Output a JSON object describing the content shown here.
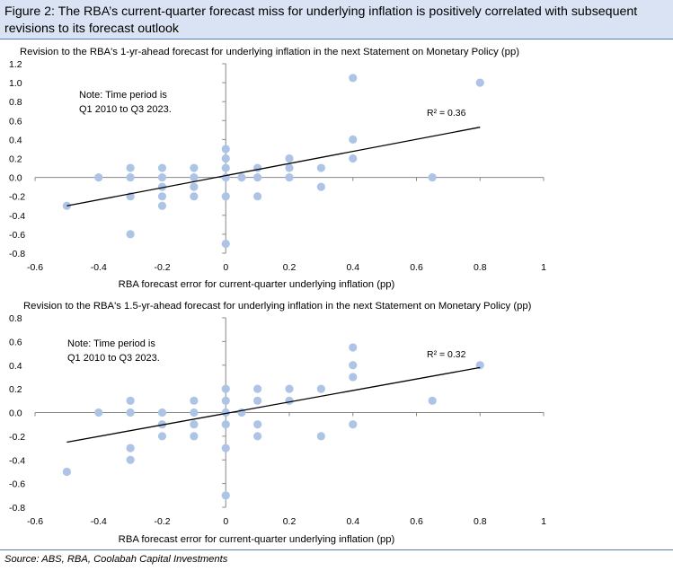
{
  "figure": {
    "title": "Figure 2: The RBA’s current-quarter forecast miss for underlying inflation is positively correlated with subsequent revisions to its forecast outlook",
    "source": "Source: ABS, RBA, Coolabah Capital Investments"
  },
  "colors": {
    "point": "#aec4e6",
    "trend": "#000000",
    "axis": "#888888",
    "header_bg": "#dae3f3"
  },
  "chart_data": [
    {
      "type": "scatter",
      "title": "Revision to the RBA's 1-yr-ahead forecast for underlying inflation in the next Statement on Monetary Policy (pp)",
      "xlabel": "RBA forecast error for current-quarter underlying inflation (pp)",
      "ylabel": "",
      "xlim": [
        -0.6,
        1
      ],
      "ylim": [
        -0.8,
        1.2
      ],
      "xticks": [
        -0.6,
        -0.4,
        -0.2,
        0,
        0.2,
        0.4,
        0.6,
        0.8,
        1
      ],
      "xtick_labels": [
        "-0.6",
        "-0.4",
        "-0.2",
        "0",
        "0.2",
        "0.4",
        "0.6",
        "0.8",
        "1"
      ],
      "yticks": [
        -0.8,
        -0.6,
        -0.4,
        -0.2,
        0,
        0.2,
        0.4,
        0.6,
        0.8,
        1,
        1.2
      ],
      "ytick_labels": [
        "-0.8",
        "-0.6",
        "-0.4",
        "-0.2",
        "0.0",
        "0.2",
        "0.4",
        "0.6",
        "0.8",
        "1.0",
        "1.2"
      ],
      "note": [
        "Note: Time period is",
        "Q1 2010 to Q3 2023."
      ],
      "r2_label": "R² = 0.36",
      "trendline": {
        "x": [
          -0.5,
          0.8
        ],
        "y": [
          -0.3,
          0.53
        ]
      },
      "points": [
        [
          -0.5,
          -0.3
        ],
        [
          -0.4,
          0.0
        ],
        [
          -0.3,
          0.1
        ],
        [
          -0.3,
          0.0
        ],
        [
          -0.3,
          -0.2
        ],
        [
          -0.3,
          -0.6
        ],
        [
          -0.2,
          0.1
        ],
        [
          -0.2,
          0.0
        ],
        [
          -0.2,
          -0.1
        ],
        [
          -0.2,
          -0.2
        ],
        [
          -0.2,
          -0.3
        ],
        [
          -0.1,
          0.1
        ],
        [
          -0.1,
          0.0
        ],
        [
          -0.1,
          -0.1
        ],
        [
          -0.1,
          -0.2
        ],
        [
          0.0,
          0.3
        ],
        [
          0.0,
          0.2
        ],
        [
          0.0,
          0.1
        ],
        [
          0.0,
          0.0
        ],
        [
          0.0,
          -0.2
        ],
        [
          0.0,
          -0.7
        ],
        [
          0.05,
          0.0
        ],
        [
          0.1,
          0.1
        ],
        [
          0.1,
          0.0
        ],
        [
          0.1,
          -0.2
        ],
        [
          0.2,
          0.2
        ],
        [
          0.2,
          0.1
        ],
        [
          0.2,
          0.0
        ],
        [
          0.3,
          0.1
        ],
        [
          0.3,
          -0.1
        ],
        [
          0.4,
          1.05
        ],
        [
          0.4,
          0.4
        ],
        [
          0.4,
          0.2
        ],
        [
          0.65,
          0.0
        ],
        [
          0.8,
          1.0
        ]
      ]
    },
    {
      "type": "scatter",
      "title": "Revision to the RBA's 1.5-yr-ahead forecast for underlying inflation in the next Statement on Monetary Policy (pp)",
      "xlabel": "RBA forecast error for current-quarter underlying inflation (pp)",
      "ylabel": "",
      "xlim": [
        -0.6,
        1
      ],
      "ylim": [
        -0.8,
        0.8
      ],
      "xticks": [
        -0.6,
        -0.4,
        -0.2,
        0,
        0.2,
        0.4,
        0.6,
        0.8,
        1
      ],
      "xtick_labels": [
        "-0.6",
        "-0.4",
        "-0.2",
        "0",
        "0.2",
        "0.4",
        "0.6",
        "0.8",
        "1"
      ],
      "yticks": [
        -0.8,
        -0.6,
        -0.4,
        -0.2,
        0,
        0.2,
        0.4,
        0.6,
        0.8
      ],
      "ytick_labels": [
        "-0.8",
        "-0.6",
        "-0.4",
        "-0.2",
        "0.0",
        "0.2",
        "0.4",
        "0.6",
        "0.8"
      ],
      "note": [
        "Note: Time period is",
        "Q1 2010 to Q3 2023."
      ],
      "r2_label": "R² = 0.32",
      "trendline": {
        "x": [
          -0.5,
          0.8
        ],
        "y": [
          -0.25,
          0.38
        ]
      },
      "points": [
        [
          -0.5,
          -0.5
        ],
        [
          -0.4,
          0.0
        ],
        [
          -0.3,
          0.1
        ],
        [
          -0.3,
          0.0
        ],
        [
          -0.3,
          -0.3
        ],
        [
          -0.3,
          -0.4
        ],
        [
          -0.2,
          0.0
        ],
        [
          -0.2,
          -0.1
        ],
        [
          -0.2,
          -0.2
        ],
        [
          -0.1,
          0.1
        ],
        [
          -0.1,
          0.0
        ],
        [
          -0.1,
          -0.1
        ],
        [
          -0.1,
          -0.2
        ],
        [
          0.0,
          0.2
        ],
        [
          0.0,
          0.1
        ],
        [
          0.0,
          0.0
        ],
        [
          0.0,
          -0.1
        ],
        [
          0.0,
          -0.3
        ],
        [
          0.0,
          -0.7
        ],
        [
          0.05,
          0.0
        ],
        [
          0.1,
          0.2
        ],
        [
          0.1,
          0.1
        ],
        [
          0.1,
          -0.1
        ],
        [
          0.1,
          -0.2
        ],
        [
          0.2,
          0.2
        ],
        [
          0.2,
          0.1
        ],
        [
          0.3,
          0.2
        ],
        [
          0.3,
          -0.2
        ],
        [
          0.4,
          0.55
        ],
        [
          0.4,
          0.4
        ],
        [
          0.4,
          0.3
        ],
        [
          0.4,
          -0.1
        ],
        [
          0.65,
          0.1
        ],
        [
          0.8,
          0.4
        ]
      ]
    }
  ]
}
